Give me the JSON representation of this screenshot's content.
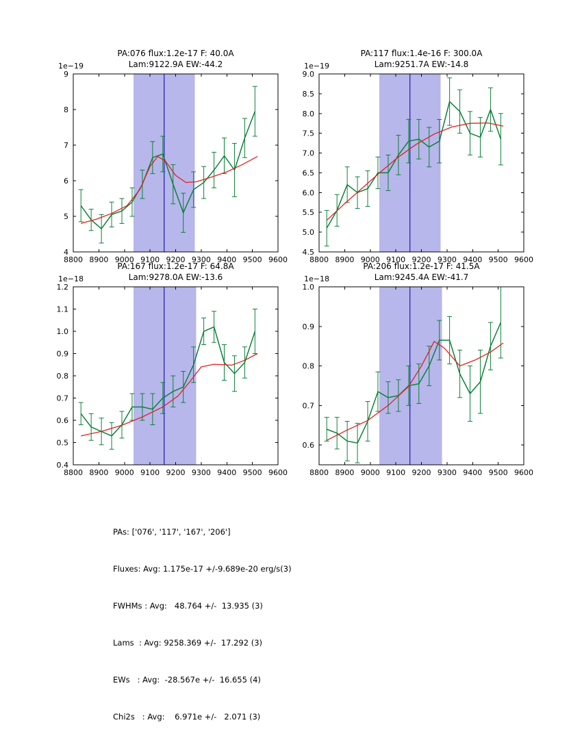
{
  "figure": {
    "background": "#ffffff",
    "colors": {
      "band": "#b7b7eb",
      "vline": "#1a1aae",
      "data": "#0c8038",
      "fit": "#e02020",
      "axis": "#000000",
      "text": "#000000"
    }
  },
  "chart_data": [
    {
      "type": "line",
      "title1": "PA:076 flux:1.2e-17 F: 40.0A",
      "title2": "Lam:9122.9A EW:-44.2",
      "scale_label": "1e−19",
      "xlim": [
        8800,
        9600
      ],
      "ylim": [
        4,
        9
      ],
      "xticks": [
        8800,
        8900,
        9000,
        9100,
        9200,
        9300,
        9400,
        9500,
        9600
      ],
      "xtick_labels": [
        "8800",
        "8900",
        "9000",
        "9100",
        "9200",
        "9300",
        "9400",
        "9500",
        "9600"
      ],
      "yticks": [
        4,
        5,
        6,
        7,
        8,
        9
      ],
      "ytick_labels": [
        "4",
        "5",
        "6",
        "7",
        "8",
        "9"
      ],
      "band": [
        9035,
        9275
      ],
      "vline": 9155,
      "series": [
        {
          "name": "data",
          "x": [
            8830,
            8870,
            8910,
            8950,
            8990,
            9030,
            9070,
            9110,
            9150,
            9190,
            9230,
            9270,
            9310,
            9350,
            9390,
            9430,
            9470,
            9510
          ],
          "y": [
            5.3,
            4.9,
            4.65,
            5.05,
            5.15,
            5.4,
            5.9,
            6.65,
            6.75,
            5.9,
            5.1,
            5.75,
            5.95,
            6.3,
            6.7,
            6.3,
            7.2,
            7.95
          ],
          "yerr": [
            0.45,
            0.3,
            0.4,
            0.35,
            0.35,
            0.4,
            0.4,
            0.45,
            0.5,
            0.55,
            0.55,
            0.5,
            0.45,
            0.5,
            0.5,
            0.75,
            0.55,
            0.7
          ]
        },
        {
          "name": "fit",
          "x": [
            8830,
            8890,
            8950,
            9010,
            9060,
            9100,
            9130,
            9160,
            9200,
            9240,
            9280,
            9340,
            9400,
            9460,
            9520
          ],
          "y": [
            4.8,
            4.92,
            5.08,
            5.3,
            5.75,
            6.4,
            6.68,
            6.55,
            6.15,
            5.95,
            5.97,
            6.1,
            6.25,
            6.45,
            6.68
          ]
        }
      ]
    },
    {
      "type": "line",
      "title1": "PA:117 flux:1.4e-16 F: 300.0A",
      "title2": "Lam:9251.7A EW:-14.8",
      "scale_label": "1e−19",
      "xlim": [
        8800,
        9600
      ],
      "ylim": [
        4.5,
        9.0
      ],
      "xticks": [
        8800,
        8900,
        9000,
        9100,
        9200,
        9300,
        9400,
        9500,
        9600
      ],
      "xtick_labels": [
        "8800",
        "8900",
        "9000",
        "9100",
        "9200",
        "9300",
        "9400",
        "9500",
        "9600"
      ],
      "yticks": [
        4.5,
        5.0,
        5.5,
        6.0,
        6.5,
        7.0,
        7.5,
        8.0,
        8.5,
        9.0
      ],
      "ytick_labels": [
        "4.5",
        "5.0",
        "5.5",
        "6.0",
        "6.5",
        "7.0",
        "7.5",
        "8.0",
        "8.5",
        "9.0"
      ],
      "band": [
        9035,
        9275
      ],
      "vline": 9155,
      "series": [
        {
          "name": "data",
          "x": [
            8830,
            8870,
            8910,
            8950,
            8990,
            9030,
            9070,
            9110,
            9150,
            9190,
            9230,
            9270,
            9310,
            9350,
            9390,
            9430,
            9470,
            9510
          ],
          "y": [
            5.1,
            5.55,
            6.2,
            6.0,
            6.1,
            6.5,
            6.5,
            6.95,
            7.3,
            7.35,
            7.15,
            7.3,
            8.3,
            8.05,
            7.5,
            7.4,
            8.1,
            7.35
          ],
          "yerr": [
            0.45,
            0.4,
            0.45,
            0.4,
            0.45,
            0.4,
            0.45,
            0.5,
            0.55,
            0.5,
            0.5,
            0.55,
            0.6,
            0.55,
            0.55,
            0.5,
            0.55,
            0.65
          ]
        },
        {
          "name": "fit",
          "x": [
            8830,
            8900,
            8970,
            9040,
            9110,
            9180,
            9250,
            9320,
            9390,
            9460,
            9520
          ],
          "y": [
            5.3,
            5.72,
            6.12,
            6.52,
            6.9,
            7.22,
            7.48,
            7.66,
            7.75,
            7.76,
            7.68
          ]
        }
      ]
    },
    {
      "type": "line",
      "title1": "PA:167 flux:1.2e-17 F: 64.8A",
      "title2": "Lam:9278.0A EW:-13.6",
      "scale_label": "1e−18",
      "xlim": [
        8800,
        9600
      ],
      "ylim": [
        0.4,
        1.2
      ],
      "xticks": [
        8800,
        8900,
        9000,
        9100,
        9200,
        9300,
        9400,
        9500,
        9600
      ],
      "xtick_labels": [
        "8800",
        "8900",
        "9000",
        "9100",
        "9200",
        "9300",
        "9400",
        "9500",
        "9600"
      ],
      "yticks": [
        0.4,
        0.5,
        0.6,
        0.7,
        0.8,
        0.9,
        1.0,
        1.1,
        1.2
      ],
      "ytick_labels": [
        "0.4",
        "0.5",
        "0.6",
        "0.7",
        "0.8",
        "0.9",
        "1.0",
        "1.1",
        "1.2"
      ],
      "band": [
        9035,
        9280
      ],
      "vline": 9155,
      "series": [
        {
          "name": "data",
          "x": [
            8830,
            8870,
            8910,
            8950,
            8990,
            9030,
            9070,
            9110,
            9150,
            9190,
            9230,
            9270,
            9310,
            9350,
            9390,
            9430,
            9470,
            9510
          ],
          "y": [
            0.63,
            0.57,
            0.55,
            0.53,
            0.58,
            0.66,
            0.66,
            0.65,
            0.7,
            0.73,
            0.75,
            0.85,
            1.0,
            1.02,
            0.86,
            0.81,
            0.86,
            1.0
          ],
          "yerr": [
            0.05,
            0.06,
            0.06,
            0.06,
            0.06,
            0.06,
            0.06,
            0.07,
            0.07,
            0.07,
            0.07,
            0.08,
            0.06,
            0.07,
            0.08,
            0.08,
            0.07,
            0.1
          ]
        },
        {
          "name": "fit",
          "x": [
            8830,
            8910,
            8990,
            9070,
            9150,
            9210,
            9260,
            9300,
            9350,
            9420,
            9470,
            9520
          ],
          "y": [
            0.53,
            0.55,
            0.578,
            0.615,
            0.66,
            0.71,
            0.78,
            0.84,
            0.852,
            0.848,
            0.87,
            0.9
          ]
        }
      ]
    },
    {
      "type": "line",
      "title1": "PA:206 flux:1.2e-17 F: 41.5A",
      "title2": "Lam:9245.4A EW:-41.7",
      "scale_label": "1e−18",
      "xlim": [
        8800,
        9600
      ],
      "ylim": [
        0.55,
        1.0
      ],
      "xticks": [
        8800,
        8900,
        9000,
        9100,
        9200,
        9300,
        9400,
        9500,
        9600
      ],
      "xtick_labels": [
        "8800",
        "8900",
        "9000",
        "9100",
        "9200",
        "9300",
        "9400",
        "9500",
        "9600"
      ],
      "yticks": [
        0.6,
        0.7,
        0.8,
        0.9,
        1.0
      ],
      "ytick_labels": [
        "0.6",
        "0.7",
        "0.8",
        "0.9",
        "1.0"
      ],
      "band": [
        9035,
        9280
      ],
      "vline": 9155,
      "series": [
        {
          "name": "data",
          "x": [
            8830,
            8870,
            8910,
            8950,
            8990,
            9030,
            9070,
            9110,
            9150,
            9190,
            9230,
            9270,
            9310,
            9350,
            9390,
            9430,
            9470,
            9510
          ],
          "y": [
            0.64,
            0.63,
            0.61,
            0.605,
            0.66,
            0.735,
            0.72,
            0.725,
            0.75,
            0.755,
            0.8,
            0.865,
            0.865,
            0.78,
            0.73,
            0.76,
            0.85,
            0.91
          ],
          "yerr": [
            0.03,
            0.04,
            0.05,
            0.05,
            0.05,
            0.05,
            0.04,
            0.04,
            0.05,
            0.05,
            0.05,
            0.05,
            0.06,
            0.06,
            0.07,
            0.08,
            0.06,
            0.09
          ]
        },
        {
          "name": "fit",
          "x": [
            8830,
            8910,
            8990,
            9070,
            9150,
            9200,
            9250,
            9290,
            9350,
            9410,
            9470,
            9520
          ],
          "y": [
            0.612,
            0.638,
            0.662,
            0.7,
            0.748,
            0.8,
            0.862,
            0.845,
            0.8,
            0.815,
            0.835,
            0.858
          ]
        }
      ]
    }
  ],
  "summary": {
    "lines": [
      "PAs: ['076', '117', '167', '206']",
      "Fluxes: Avg: 1.175e-17 +/-9.689e-20 erg/s(3)",
      "FWHMs : Avg:   48.764 +/-  13.935 (3)",
      "Lams  : Avg: 9258.369 +/-  17.292 (3)",
      "EWs   : Avg:  -28.567e +/-  16.655 (4)",
      "Chi2s   : Avg:    6.971e +/-   2.071 (3)"
    ]
  }
}
